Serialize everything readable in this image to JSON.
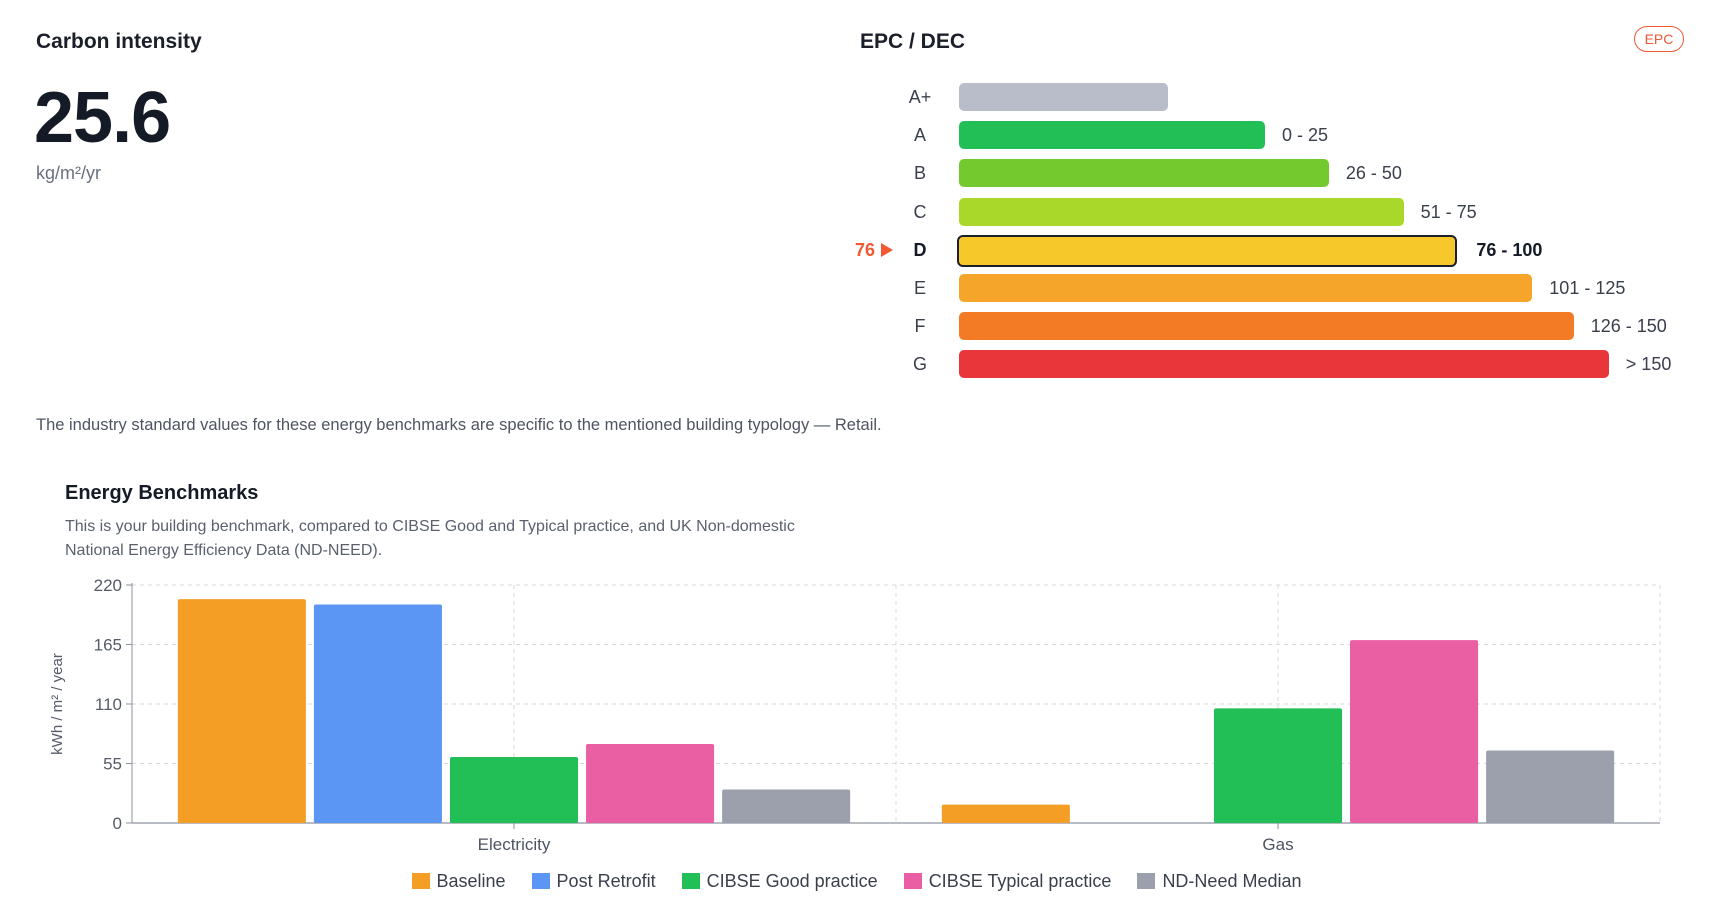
{
  "carbon": {
    "title": "Carbon intensity",
    "value": "25.6",
    "unit": "kg/m²/yr"
  },
  "epc": {
    "title": "EPC / DEC",
    "badge": "EPC",
    "current_value": "76",
    "current_letter": "D",
    "ratings": [
      {
        "letter": "A+",
        "range": "",
        "color": "#b8bdc9",
        "fill": 0.232
      },
      {
        "letter": "A",
        "range": "0 - 25",
        "color": "#22bf56",
        "fill": 0.34
      },
      {
        "letter": "B",
        "range": "26 - 50",
        "color": "#74c92f",
        "fill": 0.411
      },
      {
        "letter": "C",
        "range": "51 - 75",
        "color": "#a9d72a",
        "fill": 0.494
      },
      {
        "letter": "D",
        "range": "76 - 100",
        "color": "#f7c82a",
        "fill": 0.556
      },
      {
        "letter": "E",
        "range": "101 - 125",
        "color": "#f6a52b",
        "fill": 0.637
      },
      {
        "letter": "F",
        "range": "126 - 150",
        "color": "#f47b25",
        "fill": 0.683
      },
      {
        "letter": "G",
        "range": "> 150",
        "color": "#e9363b",
        "fill": 0.722
      }
    ]
  },
  "note": "The industry standard values for these energy benchmarks are specific to the mentioned building typology — Retail.",
  "benchmarks": {
    "title": "Energy Benchmarks",
    "description": "This is your building benchmark, compared to CIBSE Good and Typical practice, and UK Non-domestic National Energy Efficiency Data (ND-NEED)."
  },
  "chart_data": {
    "type": "bar",
    "categories": [
      "Electricity",
      "Gas"
    ],
    "ylabel": "kWh / m² / year",
    "ylim": [
      0,
      220
    ],
    "yticks": [
      0,
      55,
      110,
      165,
      220
    ],
    "grid": true,
    "legend_position": "bottom",
    "series": [
      {
        "name": "Baseline",
        "color": "#f59e25",
        "values": [
          207,
          17
        ]
      },
      {
        "name": "Post Retrofit",
        "color": "#5b96f4",
        "values": [
          202,
          0
        ]
      },
      {
        "name": "CIBSE Good practice",
        "color": "#22bf56",
        "values": [
          61,
          106
        ]
      },
      {
        "name": "CIBSE Typical practice",
        "color": "#ea5fa3",
        "values": [
          73,
          169
        ]
      },
      {
        "name": "ND-Need Median",
        "color": "#9ca0ad",
        "values": [
          31,
          67
        ]
      }
    ]
  }
}
